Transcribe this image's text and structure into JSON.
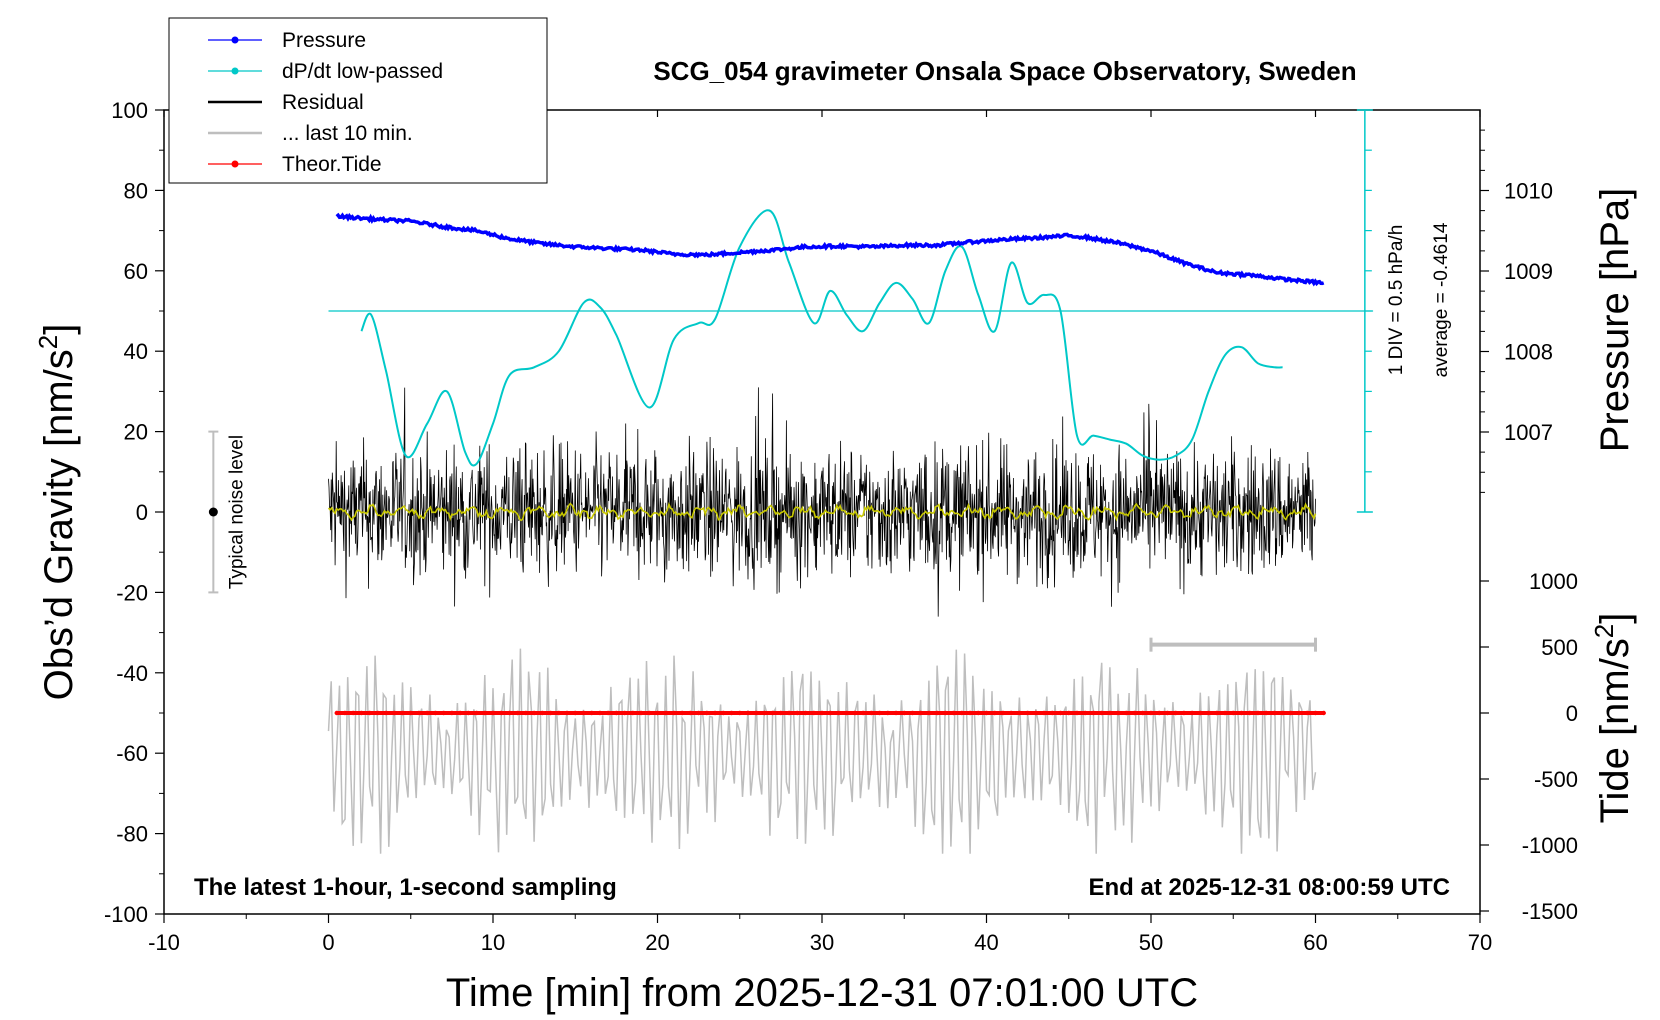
{
  "chart_data": {
    "type": "line",
    "title": "SCG_054 gravimeter Onsala Space Observatory, Sweden",
    "xlabel": "Time [min] from 2025-12-31 07:01:00 UTC",
    "ylabel": "Obs’d Gravity [nm/s²]",
    "ylabel_right_pressure": "Pressure [hPa]",
    "ylabel_right_tide": "Tide [nm/s²]",
    "xlim": [
      -10,
      70
    ],
    "ylim": [
      -100,
      100
    ],
    "pressure_lim": [
      1006,
      1011
    ],
    "tide_lim": [
      -1500,
      1500
    ],
    "grid": false,
    "legend_position": "top-left",
    "x_ticks": [
      "-10",
      "0",
      "10",
      "20",
      "30",
      "40",
      "50",
      "60",
      "70"
    ],
    "y_ticks": [
      "-100",
      "-80",
      "-60",
      "-40",
      "-20",
      "0",
      "20",
      "40",
      "60",
      "80",
      "100"
    ],
    "pressure_ticks": [
      "1007",
      "1008",
      "1009",
      "1010"
    ],
    "tide_ticks": [
      "-1500",
      "-1000",
      "-500",
      "0",
      "500",
      "1000"
    ],
    "footer_left": "The latest 1-hour, 1-second sampling",
    "footer_right": "End at 2025-12-31 08:00:59 UTC",
    "noise_label": "Typical noise level",
    "noise_range": [
      -20,
      20
    ],
    "dpdt_scale_label": "1 DIV = 0.5 hPa/h",
    "dpdt_average_label": "average = -0.4614",
    "legend": [
      {
        "name": "Pressure",
        "color": "#0000ff",
        "marker": "dot"
      },
      {
        "name": "dP/dt low-passed",
        "color": "#00c8c8",
        "marker": "dot"
      },
      {
        "name": "Residual",
        "color": "#000000",
        "marker": "line"
      },
      {
        "name": "... last 10 min.",
        "color": "#bebebe",
        "marker": "line"
      },
      {
        "name": "Theor.Tide",
        "color": "#ff0000",
        "marker": "dot"
      }
    ],
    "series": [
      {
        "name": "Pressure",
        "unit": "hPa",
        "color": "#0000ff",
        "x": [
          0.5,
          3,
          5,
          7,
          9,
          11,
          13,
          15,
          17,
          19,
          21,
          23,
          25,
          27,
          29,
          31,
          33,
          35,
          37,
          39,
          41,
          43,
          45,
          46,
          48,
          50,
          52,
          54,
          56,
          58,
          60.5
        ],
        "y": [
          1009.68,
          1009.64,
          1009.62,
          1009.55,
          1009.5,
          1009.4,
          1009.34,
          1009.3,
          1009.28,
          1009.26,
          1009.21,
          1009.2,
          1009.23,
          1009.26,
          1009.3,
          1009.31,
          1009.3,
          1009.32,
          1009.32,
          1009.36,
          1009.39,
          1009.41,
          1009.44,
          1009.42,
          1009.35,
          1009.25,
          1009.1,
          1008.98,
          1008.95,
          1008.9,
          1008.85
        ]
      },
      {
        "name": "dP/dt low-passed",
        "unit": "gravity-axis units",
        "color": "#00c8c8",
        "baseline": 50,
        "x": [
          2,
          2.6,
          3.5,
          4.7,
          6.0,
          7.2,
          8.3,
          9.0,
          10.0,
          11.0,
          12.5,
          14,
          15.5,
          16.5,
          17.5,
          19.5,
          21,
          22.5,
          23.5,
          25,
          26.8,
          28,
          29.5,
          30.5,
          31.5,
          32.5,
          33.5,
          34.5,
          35.5,
          36.5,
          37.5,
          38.5,
          39.5,
          40.5,
          41.5,
          42.5,
          43.5,
          44.5,
          45.5,
          46.5,
          47.5,
          48.5,
          49.5,
          50.5,
          51.5,
          52.5,
          53.5,
          54.5,
          55.5,
          56.5,
          57.5,
          58
        ],
        "y": [
          45,
          49,
          35,
          14,
          22,
          30,
          15,
          12,
          22,
          34,
          36,
          40,
          52,
          51,
          44,
          26,
          43,
          47,
          48,
          66,
          75,
          62,
          47,
          55,
          49,
          45,
          52,
          57,
          53,
          47,
          60,
          66,
          54,
          45,
          62,
          52,
          54,
          50,
          19,
          19,
          18,
          17,
          14,
          13,
          14,
          18,
          30,
          39,
          41,
          37,
          36,
          36
        ]
      },
      {
        "name": "Residual",
        "unit": "nm/s²",
        "color": "#000000",
        "x_range": [
          0,
          60
        ],
        "typical_amplitude": 15,
        "y_range": [
          -30,
          31
        ]
      },
      {
        "name": "... last 10 min.",
        "unit": "nm/s²",
        "color": "#bebebe",
        "x_range": [
          50,
          60
        ],
        "center": -60,
        "y_range": [
          -85,
          -31
        ]
      },
      {
        "name": "Theor.Tide",
        "unit": "nm/s²",
        "color": "#ff0000",
        "x": [
          0.5,
          15,
          30,
          45,
          60.5
        ],
        "y": [
          0,
          0,
          0,
          0,
          0
        ]
      }
    ]
  }
}
